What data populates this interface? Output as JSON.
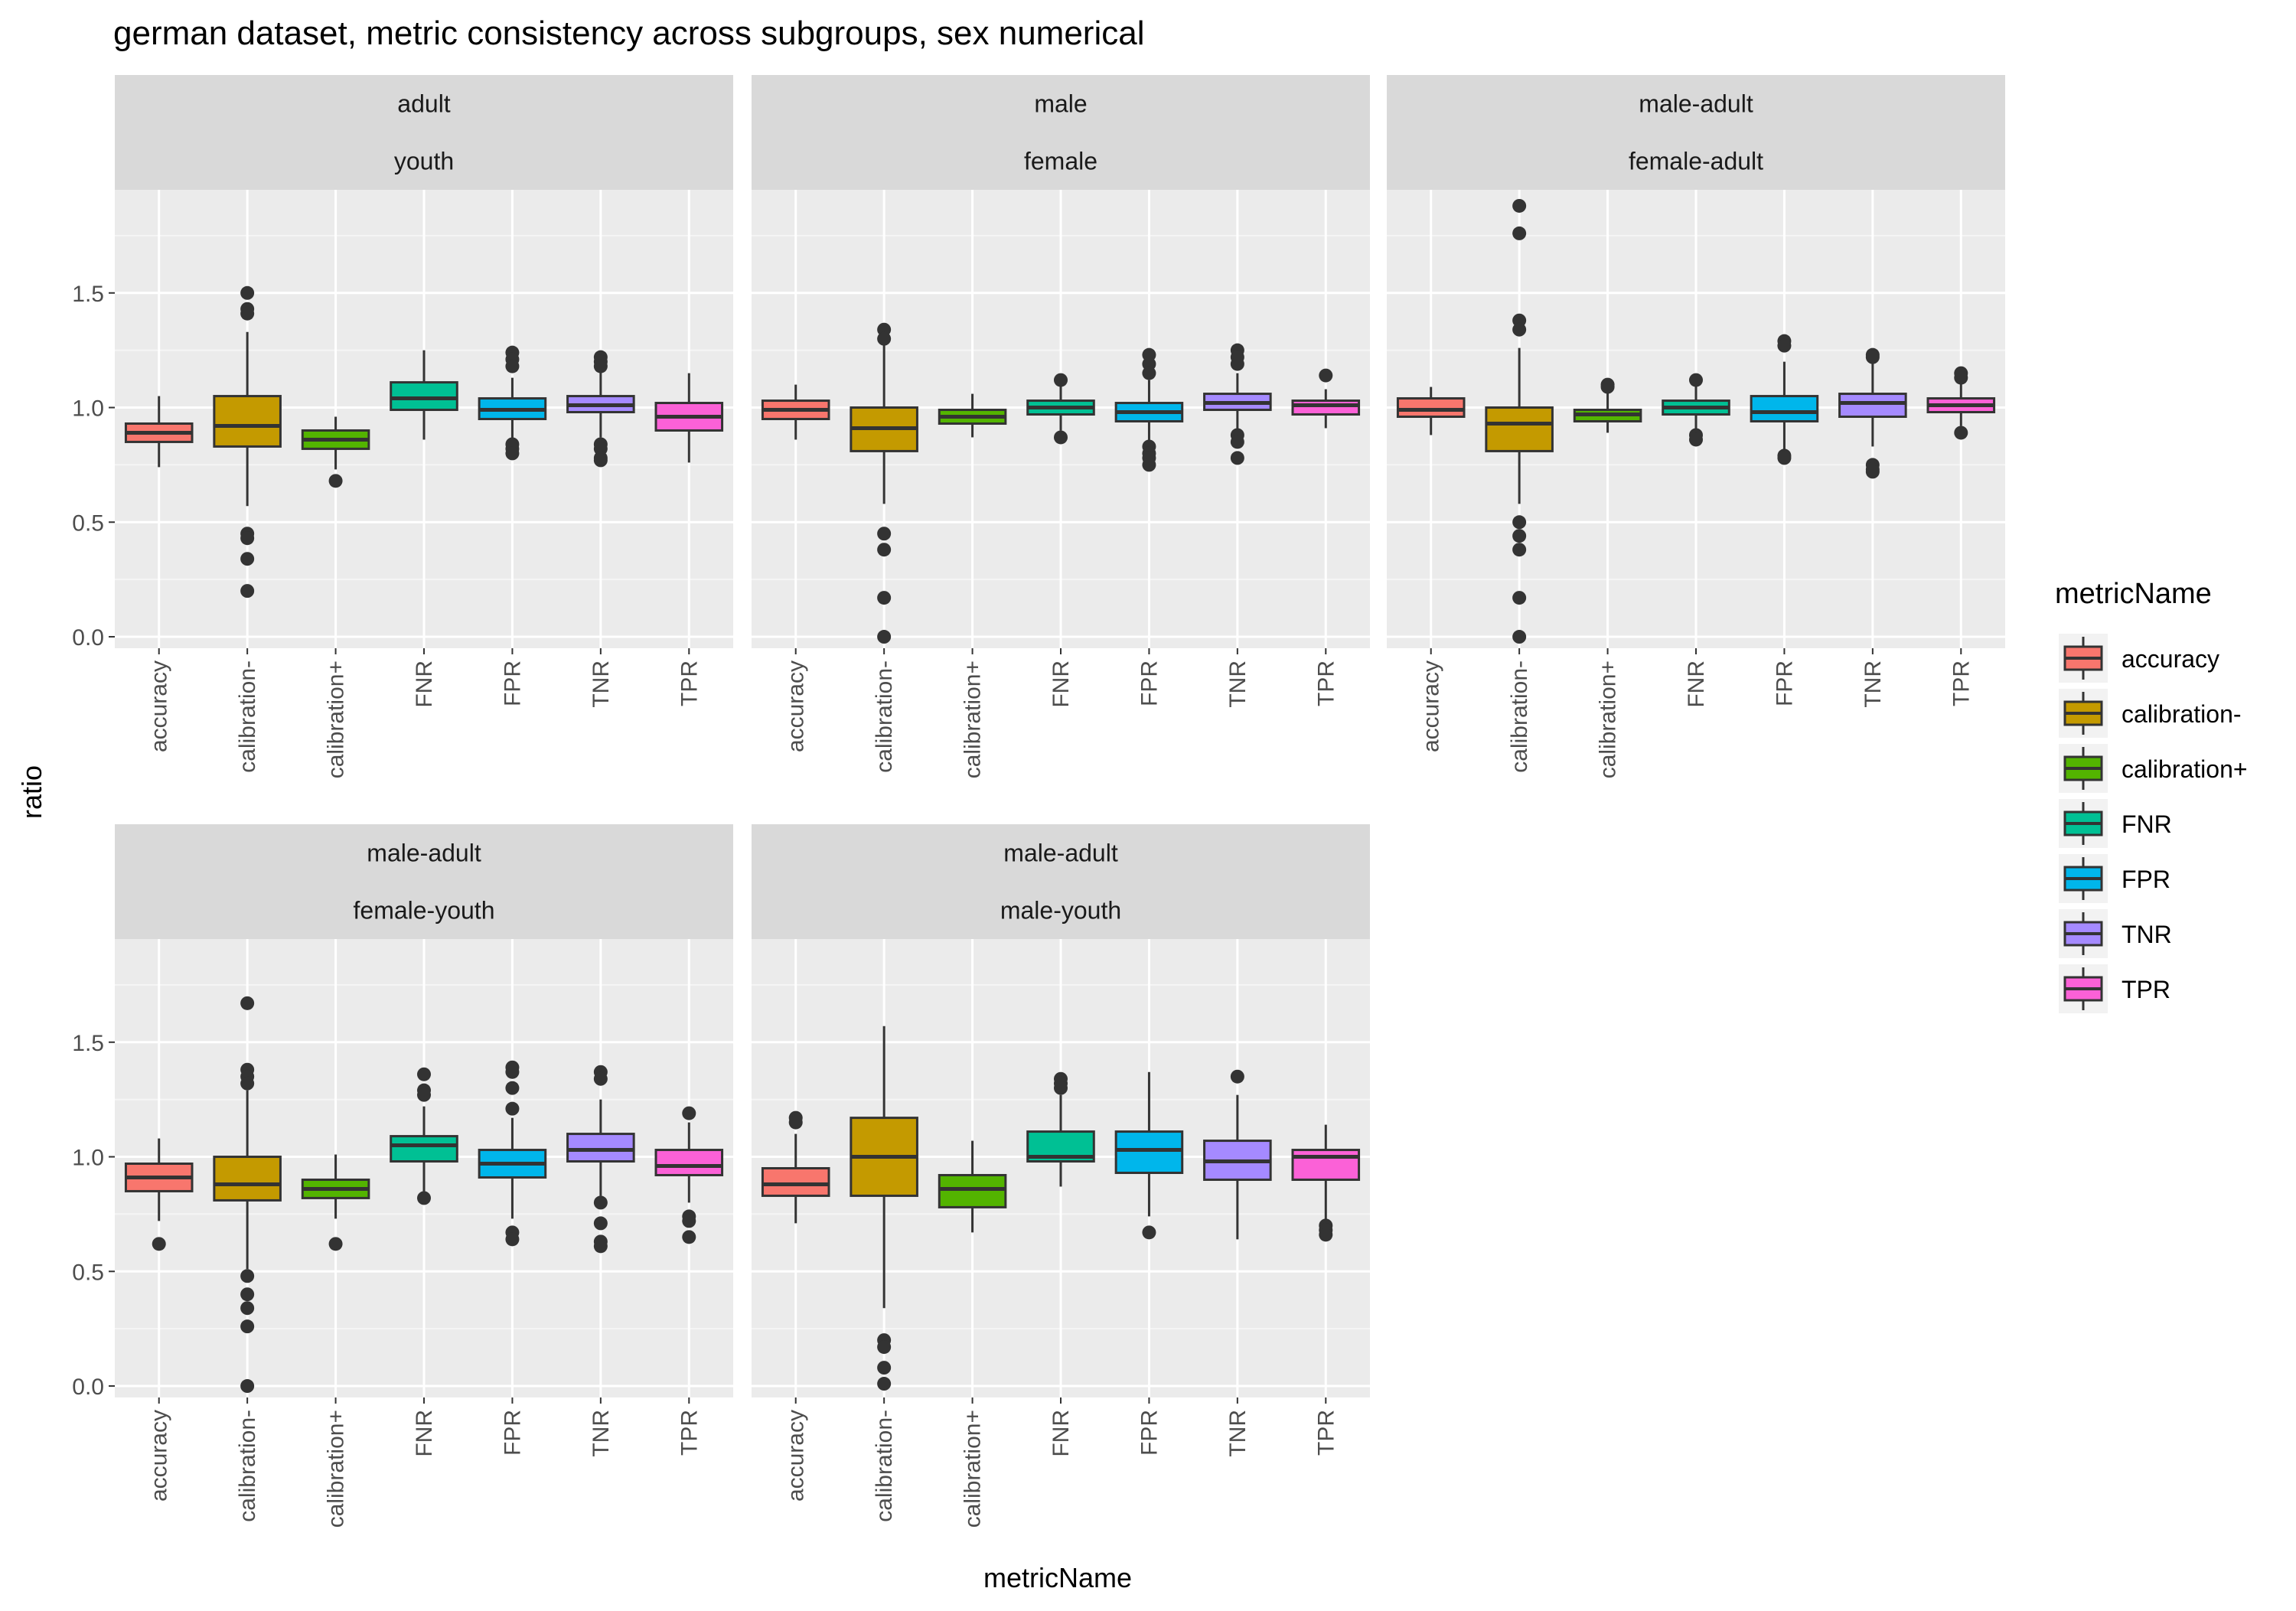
{
  "chart_data": {
    "type": "boxplot",
    "title": "german dataset, metric consistency across subgroups, sex numerical",
    "xlabel": "metricName",
    "ylabel": "ratio",
    "ylim": [
      -0.05,
      1.95
    ],
    "yticks": [
      0.0,
      0.5,
      1.0,
      1.5
    ],
    "ytick_labels": [
      "0.0",
      "0.5",
      "1.0",
      "1.5"
    ],
    "categories": [
      "accuracy",
      "calibration-",
      "calibration+",
      "FNR",
      "FPR",
      "TNR",
      "TPR"
    ],
    "legend": {
      "title": "metricName",
      "entries": [
        "accuracy",
        "calibration-",
        "calibration+",
        "FNR",
        "FPR",
        "TNR",
        "TPR"
      ],
      "position": "right"
    },
    "colors": {
      "accuracy": "#F8766D",
      "calibration-": "#C49A00",
      "calibration+": "#53B400",
      "FNR": "#00C094",
      "FPR": "#00B6EB",
      "TNR": "#A58AFF",
      "TPR": "#FB61D7"
    },
    "panels": [
      {
        "strip_top": "adult",
        "strip_bottom": "youth",
        "boxes": [
          {
            "q1": 0.85,
            "median": 0.89,
            "q3": 0.93,
            "lo": 0.74,
            "hi": 1.05,
            "outliers": []
          },
          {
            "q1": 0.83,
            "median": 0.92,
            "q3": 1.05,
            "lo": 0.57,
            "hi": 1.33,
            "outliers": [
              1.5,
              1.43,
              1.41,
              0.45,
              0.43,
              0.34,
              0.2
            ]
          },
          {
            "q1": 0.82,
            "median": 0.86,
            "q3": 0.9,
            "lo": 0.73,
            "hi": 0.96,
            "outliers": [
              0.68
            ]
          },
          {
            "q1": 0.99,
            "median": 1.04,
            "q3": 1.11,
            "lo": 0.86,
            "hi": 1.25,
            "outliers": []
          },
          {
            "q1": 0.95,
            "median": 0.99,
            "q3": 1.04,
            "lo": 0.86,
            "hi": 1.13,
            "outliers": [
              1.24,
              1.21,
              1.18,
              0.84,
              0.82,
              0.8
            ]
          },
          {
            "q1": 0.98,
            "median": 1.01,
            "q3": 1.05,
            "lo": 0.87,
            "hi": 1.16,
            "outliers": [
              1.22,
              1.2,
              1.18,
              0.84,
              0.82,
              0.78,
              0.77
            ]
          },
          {
            "q1": 0.9,
            "median": 0.96,
            "q3": 1.02,
            "lo": 0.76,
            "hi": 1.15,
            "outliers": []
          }
        ]
      },
      {
        "strip_top": "male",
        "strip_bottom": "female",
        "boxes": [
          {
            "q1": 0.95,
            "median": 0.99,
            "q3": 1.03,
            "lo": 0.86,
            "hi": 1.1,
            "outliers": []
          },
          {
            "q1": 0.81,
            "median": 0.91,
            "q3": 1.0,
            "lo": 0.58,
            "hi": 1.28,
            "outliers": [
              1.34,
              1.3,
              0.45,
              0.38,
              0.17,
              0.0
            ]
          },
          {
            "q1": 0.93,
            "median": 0.96,
            "q3": 0.99,
            "lo": 0.87,
            "hi": 1.06,
            "outliers": []
          },
          {
            "q1": 0.97,
            "median": 1.0,
            "q3": 1.03,
            "lo": 0.9,
            "hi": 1.1,
            "outliers": [
              1.12,
              0.87
            ]
          },
          {
            "q1": 0.94,
            "median": 0.98,
            "q3": 1.02,
            "lo": 0.85,
            "hi": 1.12,
            "outliers": [
              1.23,
              1.19,
              1.15,
              0.83,
              0.8,
              0.78,
              0.75
            ]
          },
          {
            "q1": 0.99,
            "median": 1.02,
            "q3": 1.06,
            "lo": 0.89,
            "hi": 1.15,
            "outliers": [
              1.25,
              1.22,
              1.19,
              0.88,
              0.85,
              0.78
            ]
          },
          {
            "q1": 0.97,
            "median": 1.01,
            "q3": 1.03,
            "lo": 0.91,
            "hi": 1.08,
            "outliers": [
              1.14
            ]
          }
        ]
      },
      {
        "strip_top": "male-adult",
        "strip_bottom": "female-adult",
        "boxes": [
          {
            "q1": 0.96,
            "median": 0.99,
            "q3": 1.04,
            "lo": 0.88,
            "hi": 1.09,
            "outliers": []
          },
          {
            "q1": 0.81,
            "median": 0.93,
            "q3": 1.0,
            "lo": 0.58,
            "hi": 1.26,
            "outliers": [
              1.88,
              1.76,
              1.38,
              1.34,
              0.5,
              0.44,
              0.38,
              0.17,
              0.0
            ]
          },
          {
            "q1": 0.94,
            "median": 0.97,
            "q3": 0.99,
            "lo": 0.89,
            "hi": 1.07,
            "outliers": [
              1.1,
              1.09
            ]
          },
          {
            "q1": 0.97,
            "median": 1.0,
            "q3": 1.03,
            "lo": 0.9,
            "hi": 1.1,
            "outliers": [
              1.12,
              0.88,
              0.86
            ]
          },
          {
            "q1": 0.94,
            "median": 0.98,
            "q3": 1.05,
            "lo": 0.8,
            "hi": 1.2,
            "outliers": [
              1.29,
              1.27,
              0.79,
              0.78
            ]
          },
          {
            "q1": 0.96,
            "median": 1.02,
            "q3": 1.06,
            "lo": 0.83,
            "hi": 1.2,
            "outliers": [
              1.23,
              1.22,
              0.75,
              0.73,
              0.72
            ]
          },
          {
            "q1": 0.98,
            "median": 1.01,
            "q3": 1.04,
            "lo": 0.92,
            "hi": 1.12,
            "outliers": [
              1.15,
              1.13,
              0.89
            ]
          }
        ]
      },
      {
        "strip_top": "male-adult",
        "strip_bottom": "female-youth",
        "boxes": [
          {
            "q1": 0.85,
            "median": 0.91,
            "q3": 0.97,
            "lo": 0.72,
            "hi": 1.08,
            "outliers": [
              0.62
            ]
          },
          {
            "q1": 0.81,
            "median": 0.88,
            "q3": 1.0,
            "lo": 0.51,
            "hi": 1.29,
            "outliers": [
              1.67,
              1.38,
              1.35,
              1.32,
              0.48,
              0.4,
              0.34,
              0.26,
              0.0
            ]
          },
          {
            "q1": 0.82,
            "median": 0.86,
            "q3": 0.9,
            "lo": 0.73,
            "hi": 1.01,
            "outliers": [
              0.62
            ]
          },
          {
            "q1": 0.98,
            "median": 1.05,
            "q3": 1.09,
            "lo": 0.85,
            "hi": 1.22,
            "outliers": [
              1.36,
              1.29,
              1.27,
              0.82
            ]
          },
          {
            "q1": 0.91,
            "median": 0.97,
            "q3": 1.03,
            "lo": 0.73,
            "hi": 1.17,
            "outliers": [
              1.39,
              1.37,
              1.3,
              1.21,
              0.67,
              0.64
            ]
          },
          {
            "q1": 0.98,
            "median": 1.03,
            "q3": 1.1,
            "lo": 0.83,
            "hi": 1.25,
            "outliers": [
              1.37,
              1.34,
              0.8,
              0.71,
              0.63,
              0.61
            ]
          },
          {
            "q1": 0.92,
            "median": 0.96,
            "q3": 1.03,
            "lo": 0.8,
            "hi": 1.15,
            "outliers": [
              1.19,
              0.74,
              0.72,
              0.65
            ]
          }
        ]
      },
      {
        "strip_top": "male-adult",
        "strip_bottom": "male-youth",
        "boxes": [
          {
            "q1": 0.83,
            "median": 0.88,
            "q3": 0.95,
            "lo": 0.71,
            "hi": 1.1,
            "outliers": [
              1.17,
              1.15
            ]
          },
          {
            "q1": 0.83,
            "median": 1.0,
            "q3": 1.17,
            "lo": 0.34,
            "hi": 1.57,
            "outliers": [
              0.2,
              0.17,
              0.08,
              0.01
            ]
          },
          {
            "q1": 0.78,
            "median": 0.86,
            "q3": 0.92,
            "lo": 0.67,
            "hi": 1.07,
            "outliers": []
          },
          {
            "q1": 0.98,
            "median": 1.0,
            "q3": 1.11,
            "lo": 0.87,
            "hi": 1.27,
            "outliers": [
              1.34,
              1.32,
              1.3
            ]
          },
          {
            "q1": 0.93,
            "median": 1.03,
            "q3": 1.11,
            "lo": 0.74,
            "hi": 1.37,
            "outliers": [
              0.67
            ]
          },
          {
            "q1": 0.9,
            "median": 0.98,
            "q3": 1.07,
            "lo": 0.64,
            "hi": 1.27,
            "outliers": [
              1.35
            ]
          },
          {
            "q1": 0.9,
            "median": 1.0,
            "q3": 1.03,
            "lo": 0.72,
            "hi": 1.14,
            "outliers": [
              0.7,
              0.68,
              0.66
            ]
          }
        ]
      }
    ]
  }
}
